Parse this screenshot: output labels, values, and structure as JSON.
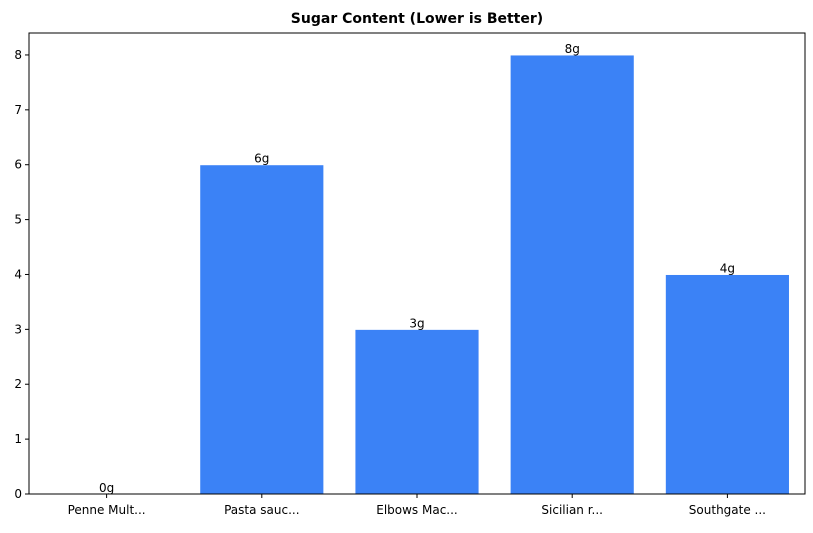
{
  "chart_data": {
    "type": "bar",
    "title": "Sugar Content (Lower is Better)",
    "xlabel": "",
    "ylabel": "",
    "categories": [
      "Penne Mult...",
      "Pasta sauc...",
      "Elbows Mac...",
      "Sicilian r...",
      "Southgate ..."
    ],
    "values": [
      0,
      6,
      3,
      8,
      4
    ],
    "data_labels": [
      "0g",
      "6g",
      "3g",
      "8g",
      "4g"
    ],
    "ylim": [
      0,
      8.4
    ],
    "yticks": [
      0,
      1,
      2,
      3,
      4,
      5,
      6,
      7,
      8
    ],
    "grid": false,
    "legend": "none",
    "bar_color": "#3b82f6",
    "bar_edge_color": "#ffffff"
  }
}
